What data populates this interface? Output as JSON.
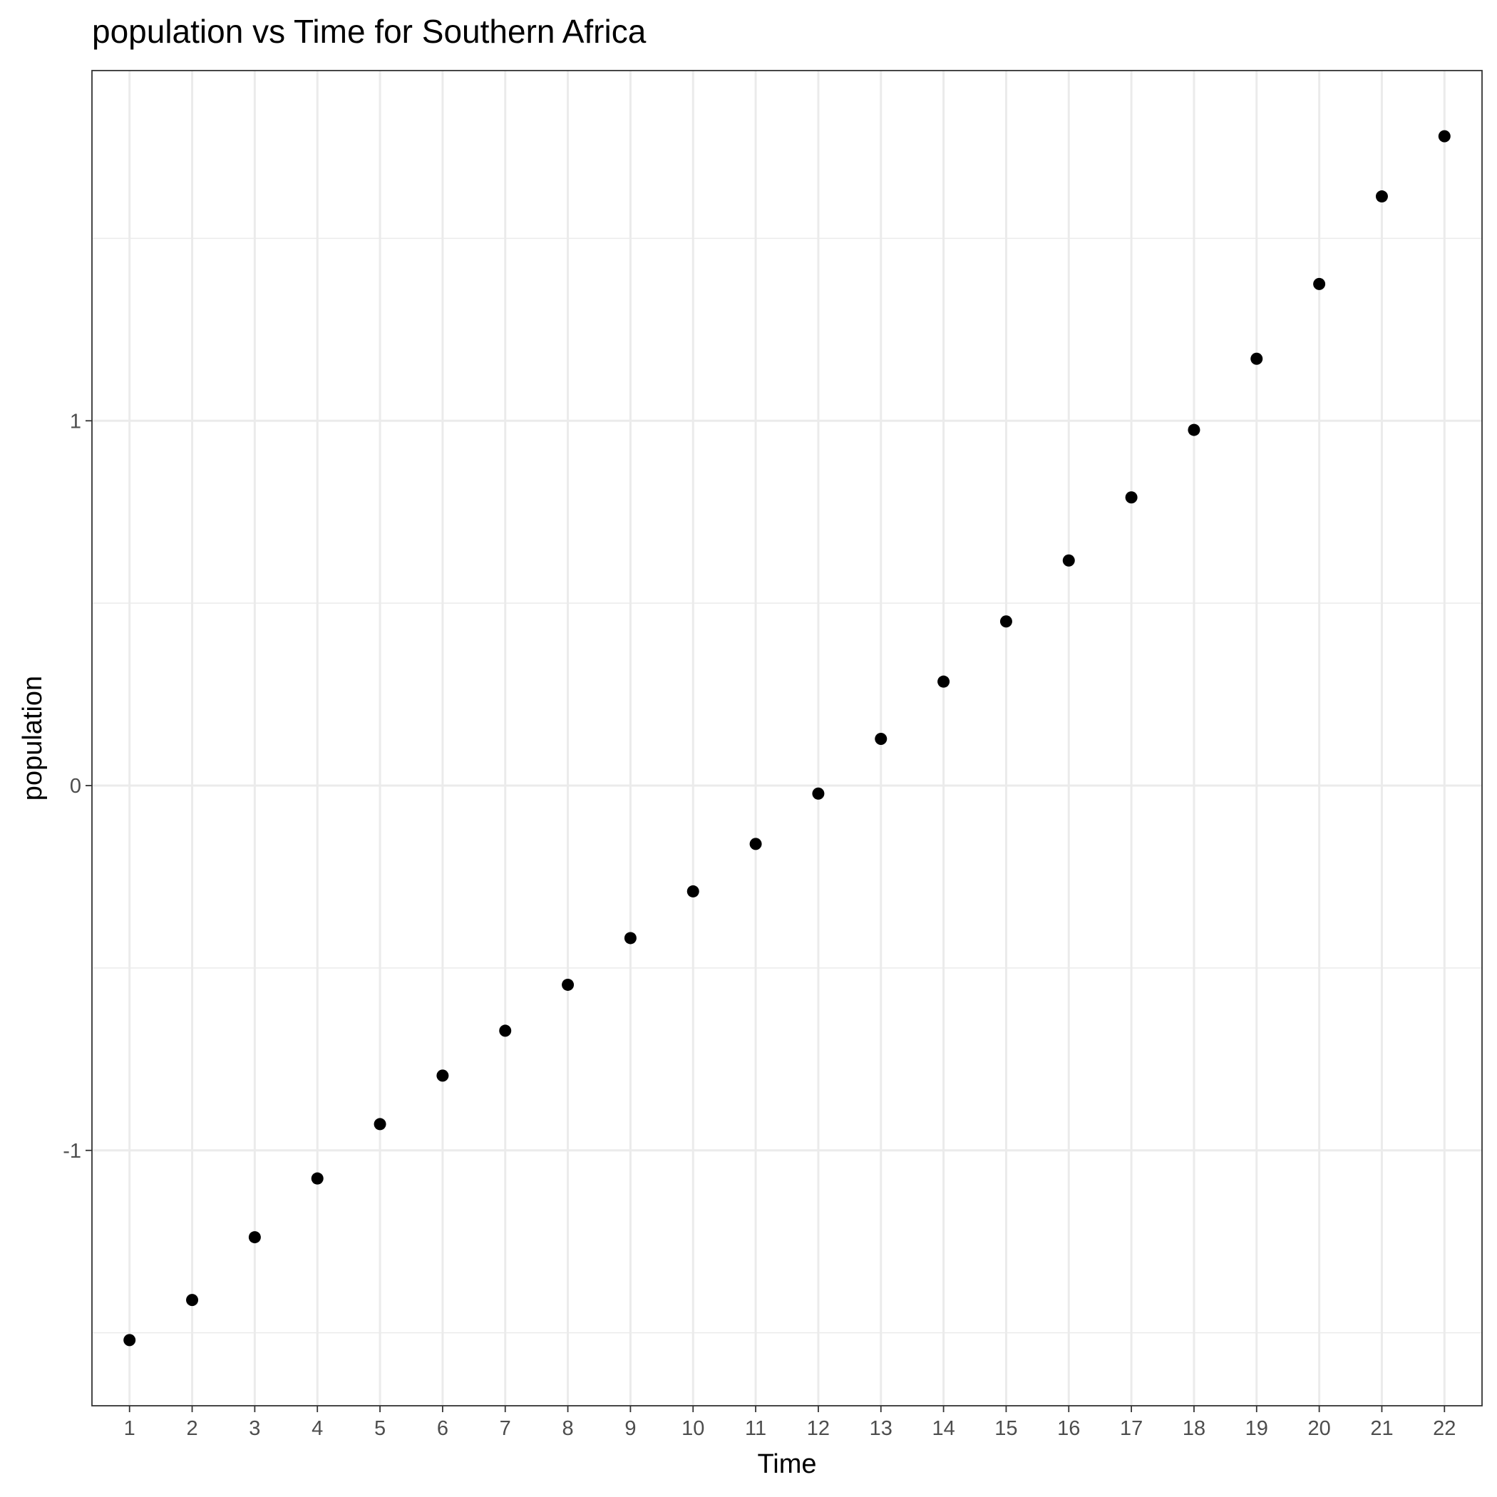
{
  "chart_data": {
    "type": "scatter",
    "title": "population  vs Time for Southern Africa",
    "xlabel": "Time",
    "ylabel": "population",
    "x": [
      1,
      2,
      3,
      4,
      5,
      6,
      7,
      8,
      9,
      10,
      11,
      12,
      13,
      14,
      15,
      16,
      17,
      18,
      19,
      20,
      21,
      22
    ],
    "y": [
      -1.52,
      -1.41,
      -1.238,
      -1.077,
      -0.928,
      -0.795,
      -0.672,
      -0.546,
      -0.418,
      -0.29,
      -0.16,
      -0.022,
      0.128,
      0.285,
      0.45,
      0.617,
      0.79,
      0.975,
      1.17,
      1.375,
      1.615,
      1.78
    ],
    "xlim": [
      0.4,
      22.6
    ],
    "ylim": [
      -1.7,
      1.96
    ],
    "x_ticks": [
      1,
      2,
      3,
      4,
      5,
      6,
      7,
      8,
      9,
      10,
      11,
      12,
      13,
      14,
      15,
      16,
      17,
      18,
      19,
      20,
      21,
      22
    ],
    "y_ticks": [
      -1,
      0,
      1
    ],
    "y_tick_labels": [
      "-1",
      "0",
      "1"
    ],
    "y_minor_grid": [
      -1.5,
      -0.5,
      0.5,
      1.5
    ],
    "grid": true,
    "legend": "none",
    "point_color": "#000000"
  }
}
